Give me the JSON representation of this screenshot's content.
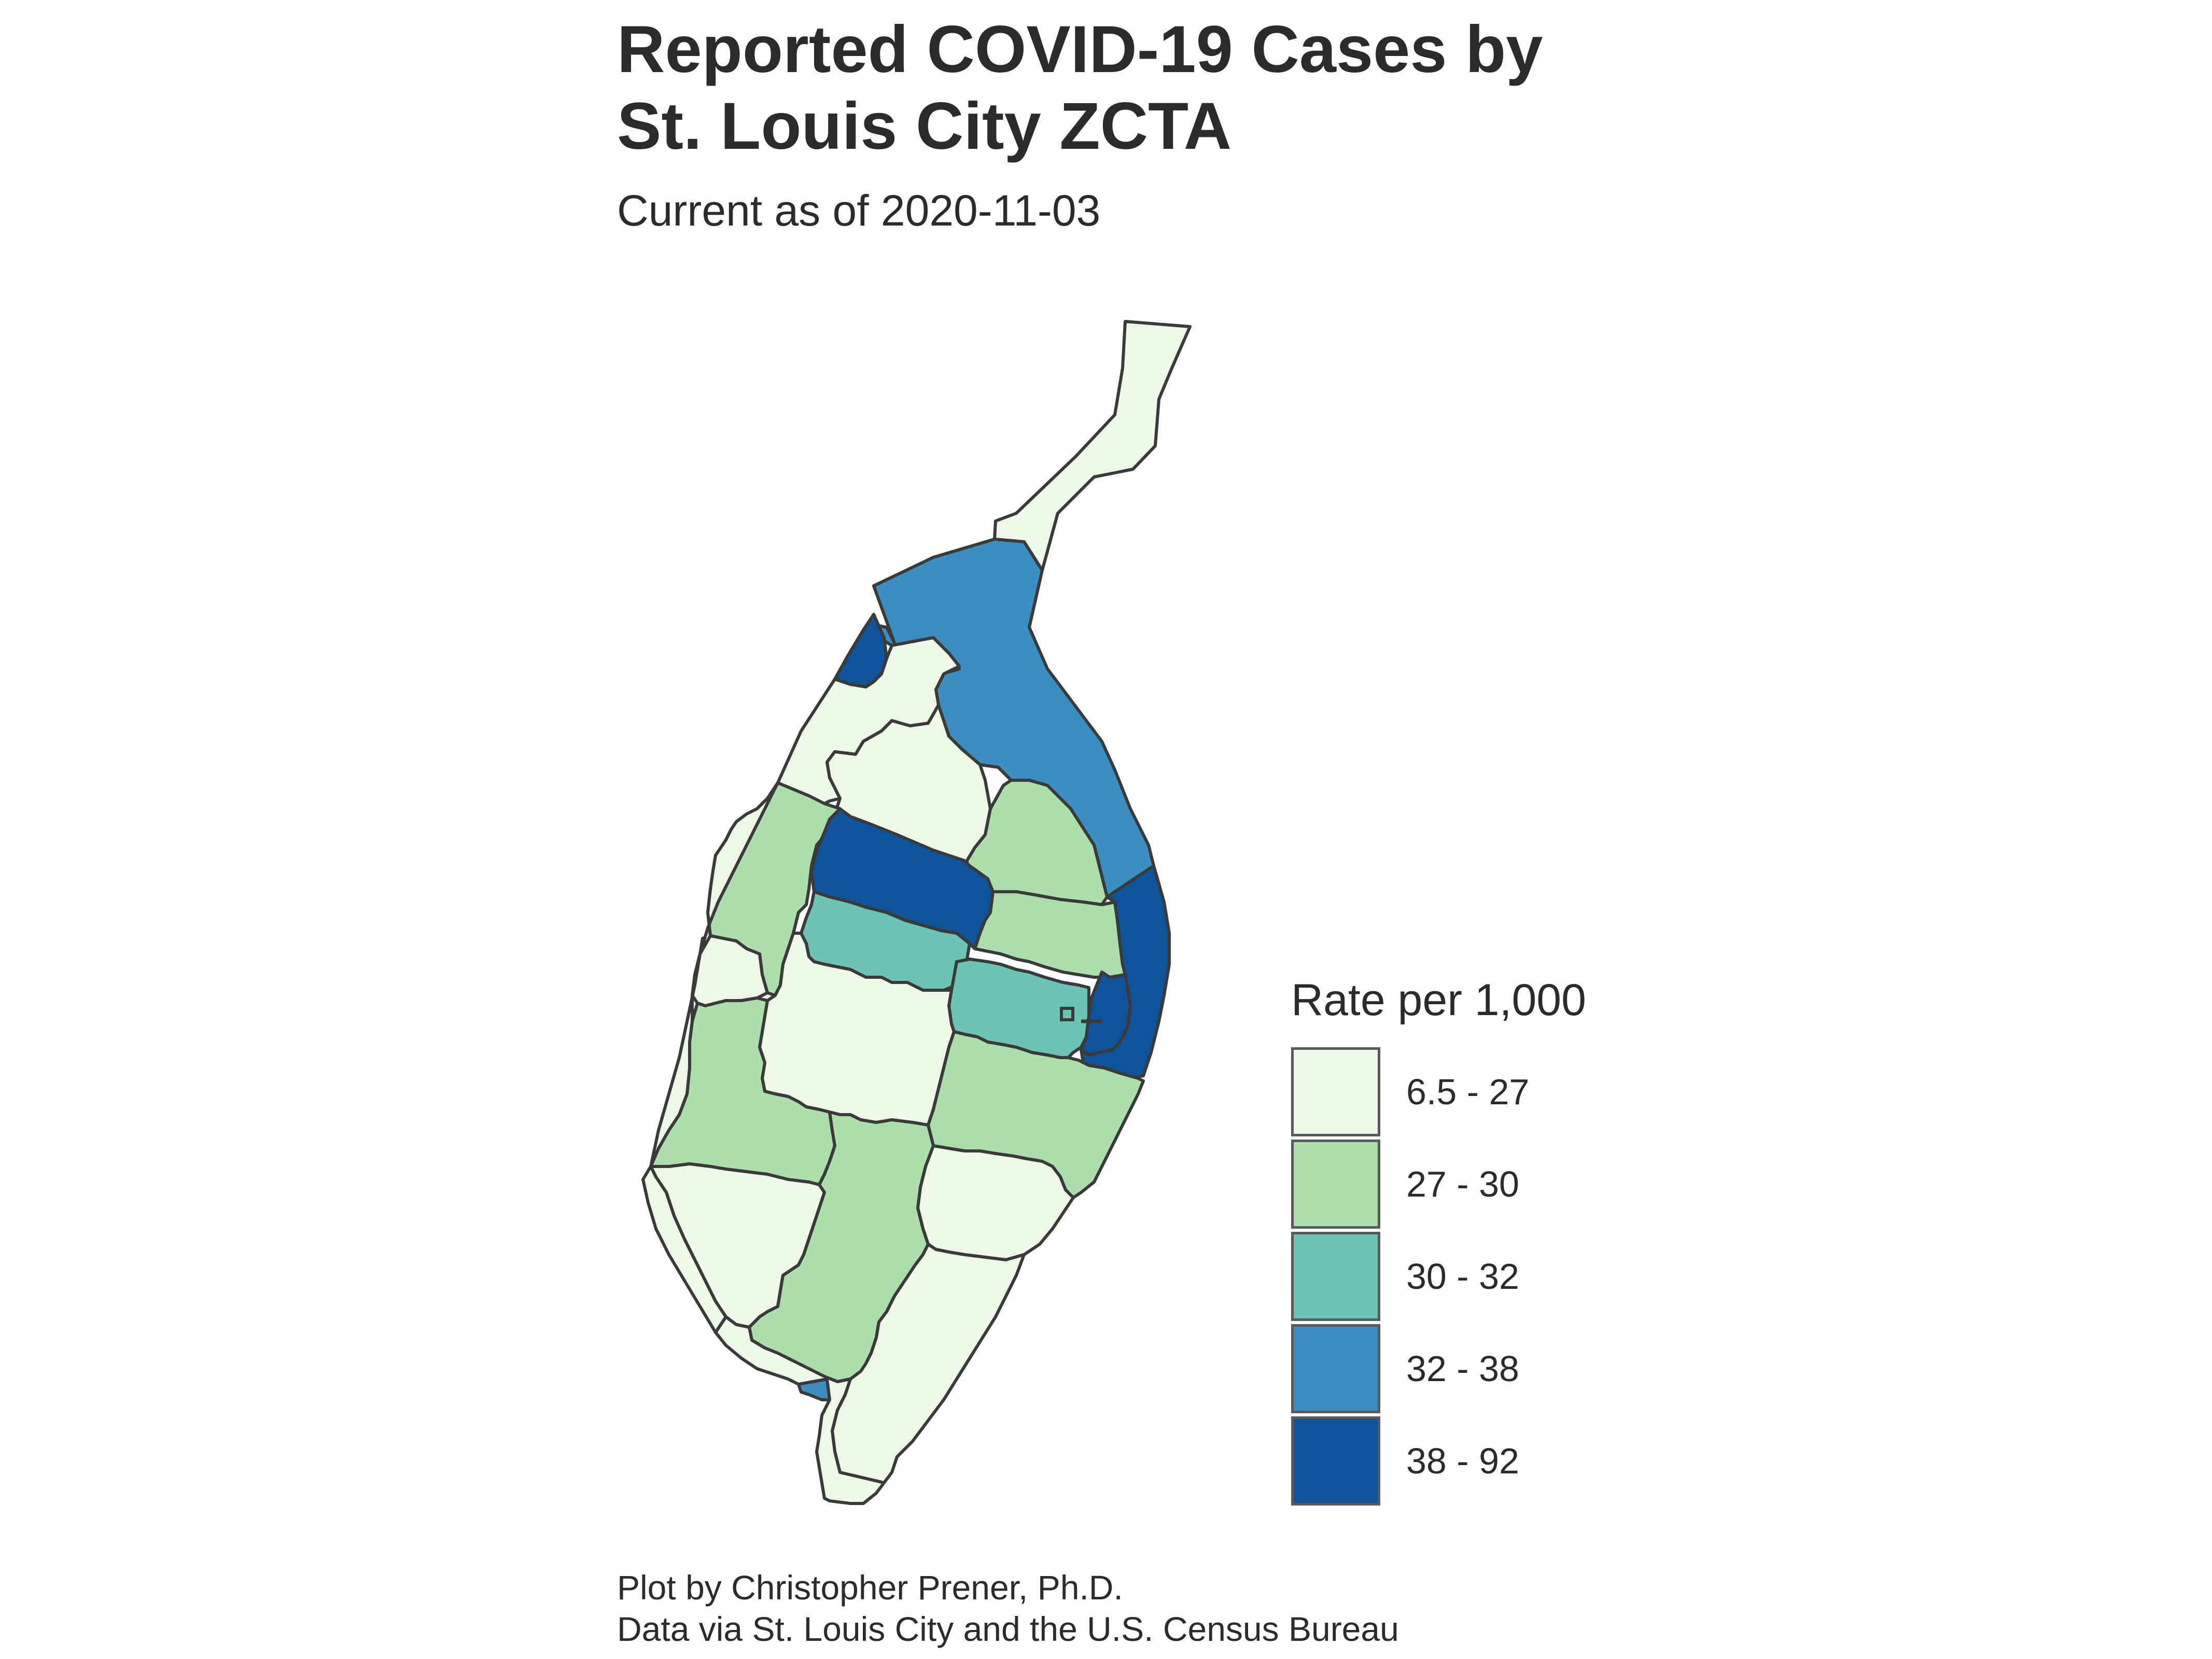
{
  "title_lines": [
    "Reported COVID-19 Cases by",
    "St. Louis City ZCTA"
  ],
  "subtitle": "Current as of 2020-11-03",
  "legend": {
    "title": "Rate per 1,000",
    "items": [
      {
        "label": "6.5 - 27",
        "color": "#edf8e6"
      },
      {
        "label": "27 - 30",
        "color": "#addfad"
      },
      {
        "label": "30 - 32",
        "color": "#6cc4b5"
      },
      {
        "label": "32 - 38",
        "color": "#3b8fc0"
      },
      {
        "label": "38 - 92",
        "color": "#0f539b"
      }
    ]
  },
  "caption_lines": [
    "Plot by Christopher Prener, Ph.D.",
    "Data via St. Louis City and the U.S. Census Bureau"
  ],
  "colors": {
    "background": "#ffffff",
    "boundary": "#3a3a3a",
    "text": "#2b2b2b"
  },
  "map": {
    "region": "St. Louis City",
    "units": "ZCTA",
    "zones": [
      {
        "name": "north-tip",
        "class": 0
      },
      {
        "name": "north-riverfront",
        "class": 3
      },
      {
        "name": "northwest-corner",
        "class": 4
      },
      {
        "name": "north-inner-a",
        "class": 0
      },
      {
        "name": "north-inner-b",
        "class": 0
      },
      {
        "name": "north-central",
        "class": 0
      },
      {
        "name": "northwest-mid",
        "class": 1
      },
      {
        "name": "northeast-mid",
        "class": 1
      },
      {
        "name": "central-north-band",
        "class": 4
      },
      {
        "name": "central-band",
        "class": 2
      },
      {
        "name": "east-central",
        "class": 1
      },
      {
        "name": "west-small",
        "class": 0
      },
      {
        "name": "downtown-west",
        "class": 2
      },
      {
        "name": "downtown",
        "class": 4
      },
      {
        "name": "downtown-east-strip",
        "class": 4
      },
      {
        "name": "central",
        "class": 0
      },
      {
        "name": "west-central",
        "class": 1
      },
      {
        "name": "southeast-mid",
        "class": 1
      },
      {
        "name": "south-central-east",
        "class": 0
      },
      {
        "name": "southwest",
        "class": 0
      },
      {
        "name": "south-central",
        "class": 1
      },
      {
        "name": "south-east",
        "class": 0
      },
      {
        "name": "southern-tip",
        "class": 3
      },
      {
        "name": "far-south",
        "class": 0
      }
    ]
  }
}
